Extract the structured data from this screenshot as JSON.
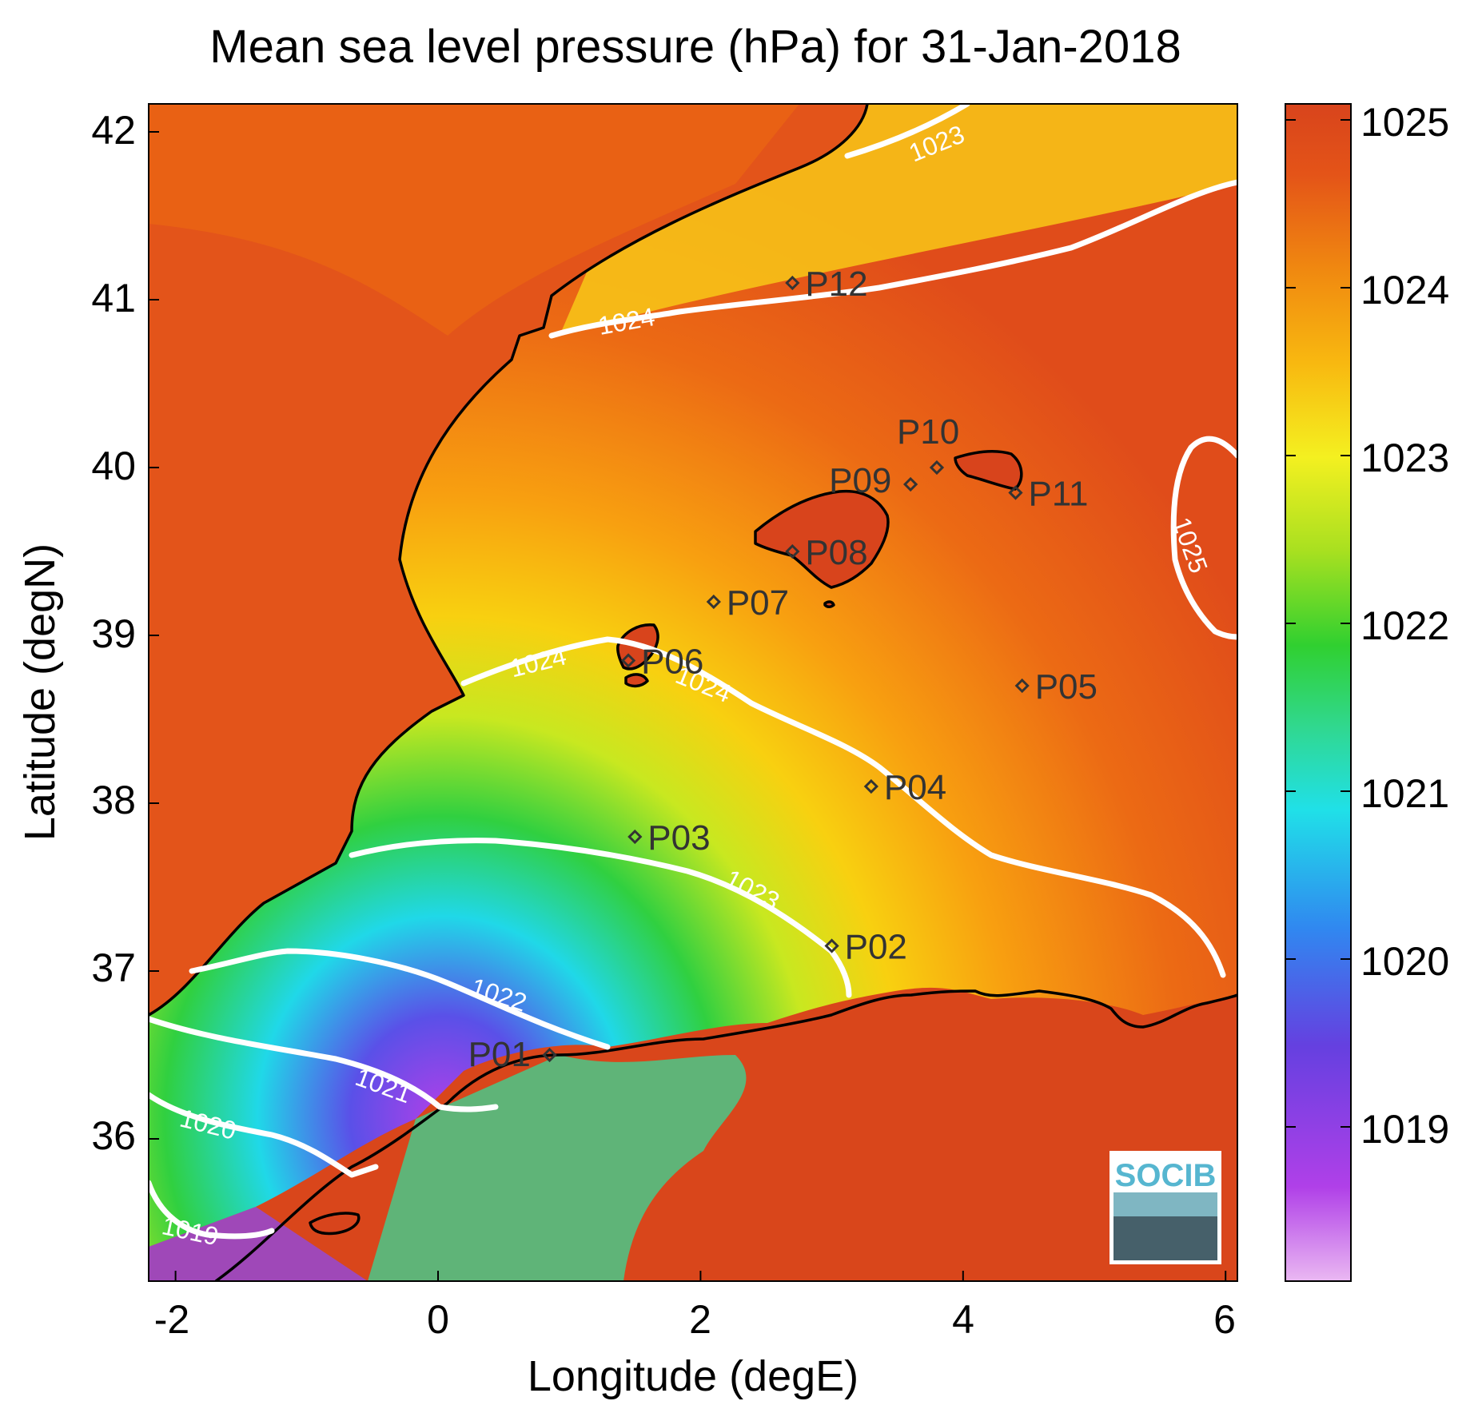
{
  "title": "Mean sea level pressure (hPa) for 31-Jan-2018",
  "xlabel": "Longitude (degE)",
  "ylabel": "Latitude (degN)",
  "x_ticks": [
    "-2",
    "0",
    "2",
    "4",
    "6"
  ],
  "y_ticks": [
    "42",
    "41",
    "40",
    "39",
    "38",
    "37",
    "36"
  ],
  "colorbar": {
    "ticks": [
      "1025",
      "1024",
      "1023",
      "1022",
      "1021",
      "1020",
      "1019"
    ],
    "colors": [
      "#e8b0f0",
      "#b040e8",
      "#6040e0",
      "#3080f0",
      "#20e0e0",
      "#30d080",
      "#30d030",
      "#a0e020",
      "#f0f020",
      "#f0b010",
      "#f08010",
      "#e05018",
      "#d8441c"
    ]
  },
  "contour_labels": [
    "1019",
    "1020",
    "1021",
    "1022",
    "1023",
    "1024",
    "1024",
    "1024",
    "1023",
    "1025"
  ],
  "stations": [
    {
      "id": "P01",
      "lon": 0.85,
      "lat": 36.5
    },
    {
      "id": "P02",
      "lon": 3.0,
      "lat": 37.15
    },
    {
      "id": "P03",
      "lon": 1.5,
      "lat": 37.8
    },
    {
      "id": "P04",
      "lon": 3.3,
      "lat": 38.1
    },
    {
      "id": "P05",
      "lon": 4.45,
      "lat": 38.7
    },
    {
      "id": "P06",
      "lon": 1.45,
      "lat": 38.85
    },
    {
      "id": "P07",
      "lon": 2.1,
      "lat": 39.2
    },
    {
      "id": "P08",
      "lon": 2.7,
      "lat": 39.5
    },
    {
      "id": "P09",
      "lon": 3.6,
      "lat": 39.9
    },
    {
      "id": "P10",
      "lon": 3.8,
      "lat": 40.0
    },
    {
      "id": "P11",
      "lon": 4.4,
      "lat": 39.85
    },
    {
      "id": "P12",
      "lon": 2.7,
      "lat": 41.1
    }
  ],
  "logo_text": "SOCIB",
  "colors": {
    "high": "#d8441c",
    "contour": "#ffffff",
    "coast": "#000000"
  }
}
